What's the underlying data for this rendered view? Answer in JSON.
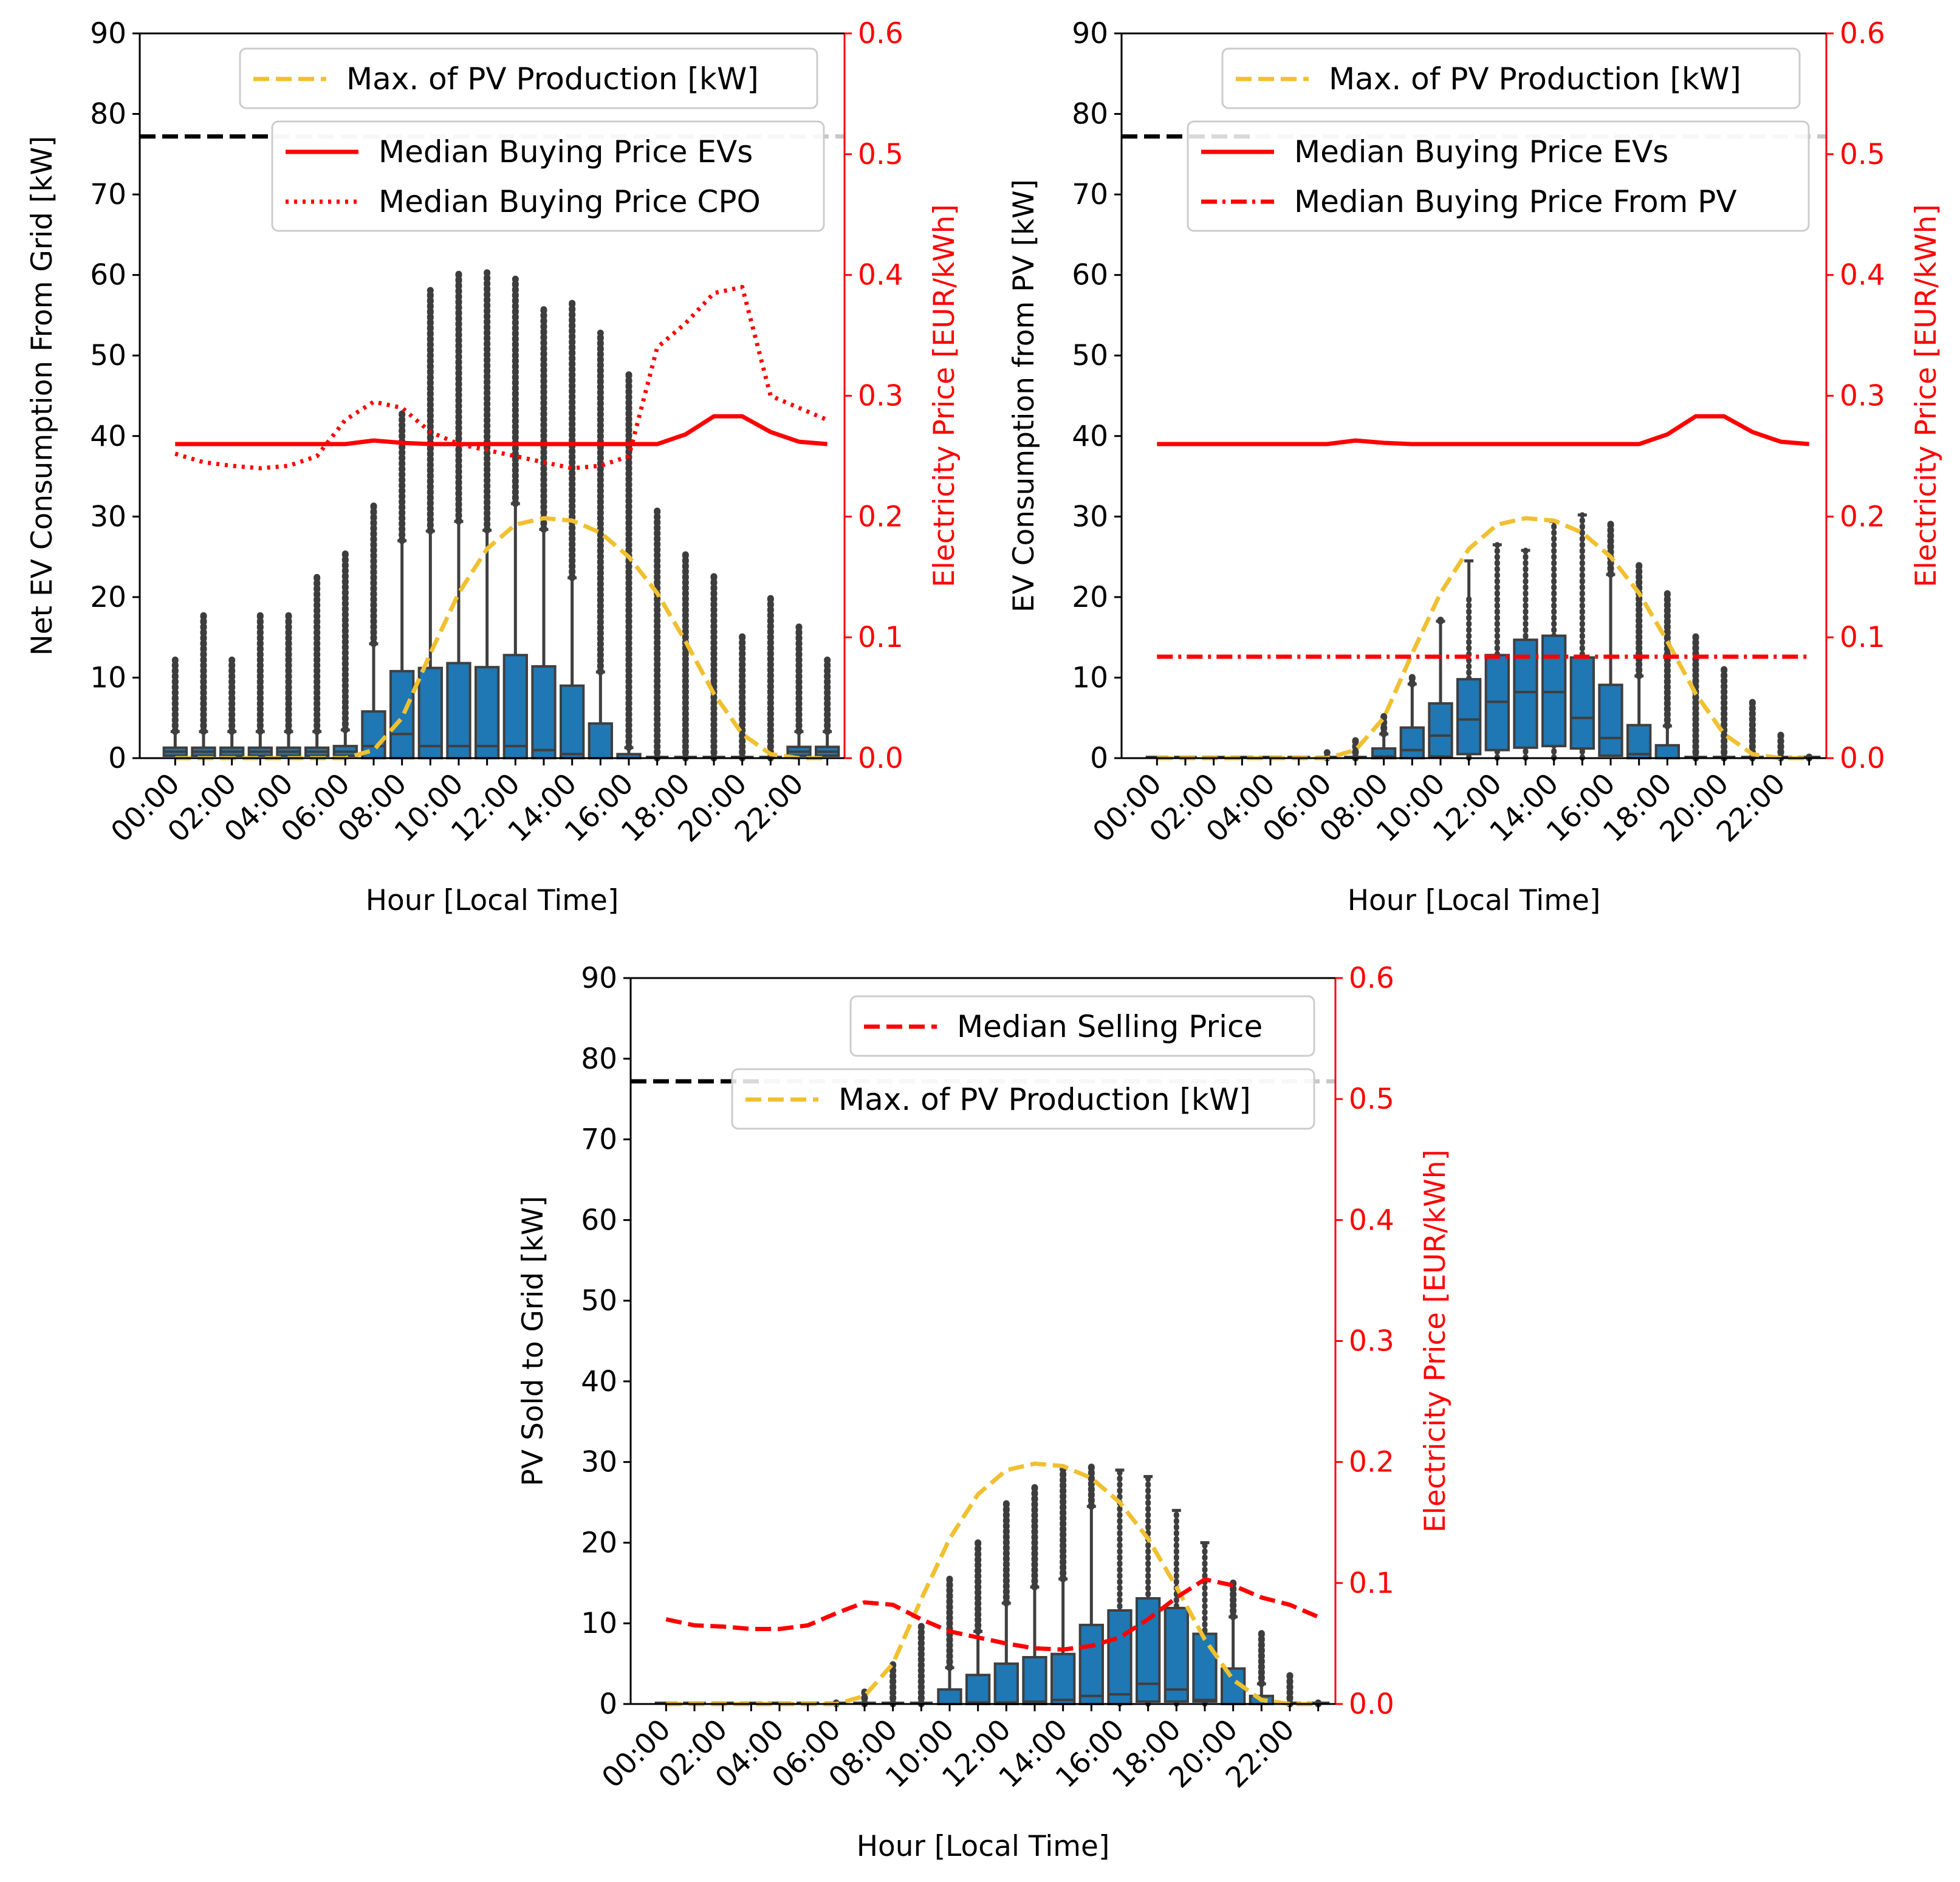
{
  "chart_data": [
    {
      "type": "box",
      "id": "grid",
      "xlabel": "Hour [Local Time]",
      "ylabel": "Net EV Consumption From Grid [kW]",
      "ylabel_right": "Electricity Price [EUR/kWh]",
      "ylim": [
        0,
        90
      ],
      "ylim_right": [
        0,
        0.6
      ],
      "yticks": [
        "0",
        "10",
        "20",
        "30",
        "40",
        "50",
        "60",
        "70",
        "80",
        "90"
      ],
      "yticks_right": [
        "0.0",
        "0.1",
        "0.2",
        "0.3",
        "0.4",
        "0.5",
        "0.6"
      ],
      "xticks": [
        "00:00",
        "02:00",
        "04:00",
        "06:00",
        "08:00",
        "10:00",
        "12:00",
        "14:00",
        "16:00",
        "18:00",
        "20:00",
        "22:00"
      ],
      "boxes": {
        "q1": [
          0.3,
          0.3,
          0.3,
          0.3,
          0.3,
          0.3,
          0.3,
          0,
          0,
          0,
          0,
          0,
          0,
          0,
          0,
          0,
          0,
          0,
          0,
          0,
          0,
          0,
          0.3,
          0.3
        ],
        "median": [
          0.8,
          0.8,
          0.8,
          0.8,
          0.8,
          0.8,
          0.8,
          1.5,
          3,
          1.5,
          1.5,
          1.5,
          1.5,
          1,
          0.5,
          0,
          0,
          0,
          0,
          0,
          0,
          0,
          0.8,
          0.8
        ],
        "q3": [
          1.3,
          1.3,
          1.3,
          1.3,
          1.3,
          1.3,
          1.5,
          5.8,
          10.8,
          11.2,
          11.8,
          11.3,
          12.8,
          11.4,
          9,
          4.3,
          0.5,
          0,
          0,
          0,
          0,
          0,
          1.4,
          1.4
        ],
        "whisker_high": [
          3.3,
          3.3,
          3.3,
          3.3,
          3.3,
          3.3,
          3.5,
          14.2,
          27,
          28.2,
          29.4,
          28.3,
          31.6,
          28.4,
          22.4,
          10.7,
          1.3,
          0,
          0,
          0,
          0,
          0,
          3.3,
          3.3
        ],
        "flier_max": [
          12.2,
          18.2,
          12.2,
          18.2,
          18.2,
          22.8,
          25.8,
          31.6,
          42.8,
          58.1,
          60.5,
          60.3,
          59.5,
          55.8,
          56.5,
          52.8,
          47.8,
          30.8,
          25.6,
          22.8,
          15.4,
          20.3,
          16.3,
          12.2
        ]
      },
      "lines": [
        {
          "name": "Median Buying Price EVs",
          "axis": "right",
          "style": "solid",
          "color": "#ff0000",
          "values": [
            0.26,
            0.26,
            0.26,
            0.26,
            0.26,
            0.26,
            0.26,
            0.263,
            0.261,
            0.26,
            0.26,
            0.26,
            0.26,
            0.26,
            0.26,
            0.26,
            0.26,
            0.26,
            0.268,
            0.283,
            0.283,
            0.27,
            0.262,
            0.26
          ]
        },
        {
          "name": "Median Buying Price CPO",
          "axis": "right",
          "style": "dotted",
          "color": "#ff0000",
          "values": [
            0.252,
            0.245,
            0.242,
            0.24,
            0.242,
            0.25,
            0.28,
            0.295,
            0.29,
            0.27,
            0.26,
            0.255,
            0.25,
            0.245,
            0.24,
            0.242,
            0.25,
            0.34,
            0.36,
            0.385,
            0.39,
            0.3,
            0.29,
            0.28
          ]
        }
      ],
      "pv_max": {
        "name": "Max. of PV Production [kW]",
        "style": "dashed",
        "color": "#f0c030",
        "values": [
          0,
          0,
          0,
          0,
          0,
          0,
          0,
          1,
          5,
          13,
          20.5,
          26,
          29,
          29.8,
          29.5,
          28,
          25,
          20.5,
          14.5,
          8,
          3,
          0.5,
          0,
          0
        ]
      },
      "reference_line": {
        "value": 77.2,
        "style": "dashed",
        "color": "#000000"
      },
      "legends": [
        {
          "entries": [
            {
              "label": "Max. of PV Production [kW]",
              "style": "dashed",
              "color": "#f0c030"
            }
          ]
        },
        {
          "entries": [
            {
              "label": "Median Buying Price EVs",
              "style": "solid",
              "color": "#ff0000"
            },
            {
              "label": "Median Buying Price CPO",
              "style": "dotted",
              "color": "#ff0000"
            }
          ]
        }
      ]
    },
    {
      "type": "box",
      "id": "pv",
      "xlabel": "Hour [Local Time]",
      "ylabel": "EV Consumption from PV [kW]",
      "ylabel_right": "Electricity Price [EUR/kWh]",
      "ylim": [
        0,
        90
      ],
      "ylim_right": [
        0,
        0.6
      ],
      "yticks": [
        "0",
        "10",
        "20",
        "30",
        "40",
        "50",
        "60",
        "70",
        "80",
        "90"
      ],
      "yticks_right": [
        "0.0",
        "0.1",
        "0.2",
        "0.3",
        "0.4",
        "0.5",
        "0.6"
      ],
      "xticks": [
        "00:00",
        "02:00",
        "04:00",
        "06:00",
        "08:00",
        "10:00",
        "12:00",
        "14:00",
        "16:00",
        "18:00",
        "20:00",
        "22:00"
      ],
      "boxes": {
        "q1": [
          0,
          0,
          0,
          0,
          0,
          0,
          0,
          0,
          0,
          0,
          0.2,
          0.5,
          1,
          1.3,
          1.5,
          1.2,
          0.3,
          0,
          0,
          0,
          0,
          0,
          0,
          0
        ],
        "median": [
          0,
          0,
          0,
          0,
          0,
          0,
          0,
          0,
          0.2,
          1,
          2.8,
          4.8,
          7,
          8.2,
          8.2,
          5,
          2.5,
          0.5,
          0,
          0,
          0,
          0,
          0,
          0
        ],
        "q3": [
          0,
          0,
          0,
          0,
          0,
          0,
          0,
          0,
          1.2,
          3.8,
          6.8,
          9.8,
          12.8,
          14.7,
          15.2,
          12.5,
          9.1,
          4.1,
          1.6,
          0,
          0,
          0,
          0,
          0
        ],
        "whisker_high": [
          0,
          0,
          0,
          0,
          0,
          0,
          0,
          0,
          3,
          9.2,
          17,
          24.5,
          26.5,
          25.8,
          29.4,
          30.2,
          22.8,
          10.2,
          4,
          0,
          0,
          0,
          0,
          0
        ],
        "flier_max": [
          0,
          0,
          0,
          0,
          0,
          0,
          0.7,
          2.2,
          5.4,
          10.2,
          17.6,
          20.2,
          26.5,
          25.8,
          29.4,
          30.2,
          29.2,
          24,
          20.8,
          15.6,
          11.4,
          7,
          3,
          0.5
        ]
      },
      "lines": [
        {
          "name": "Median Buying Price EVs",
          "axis": "right",
          "style": "solid",
          "color": "#ff0000",
          "values": [
            0.26,
            0.26,
            0.26,
            0.26,
            0.26,
            0.26,
            0.26,
            0.263,
            0.261,
            0.26,
            0.26,
            0.26,
            0.26,
            0.26,
            0.26,
            0.26,
            0.26,
            0.26,
            0.268,
            0.283,
            0.283,
            0.27,
            0.262,
            0.26
          ]
        },
        {
          "name": "Median Buying Price From PV",
          "axis": "right",
          "style": "dashdot",
          "color": "#ff0000",
          "values": [
            0.084,
            0.084,
            0.084,
            0.084,
            0.084,
            0.084,
            0.084,
            0.084,
            0.084,
            0.084,
            0.084,
            0.084,
            0.084,
            0.084,
            0.084,
            0.084,
            0.084,
            0.084,
            0.084,
            0.084,
            0.084,
            0.084,
            0.084,
            0.084
          ],
          "start_index": 0
        }
      ],
      "pv_max": {
        "name": "Max. of PV Production [kW]",
        "style": "dashed",
        "color": "#f0c030",
        "values": [
          0,
          0,
          0,
          0,
          0,
          0,
          0,
          1,
          5,
          13,
          20.5,
          26,
          29,
          29.8,
          29.5,
          28,
          25,
          20.5,
          14.5,
          8,
          3,
          0.5,
          0,
          0
        ]
      },
      "reference_line": {
        "value": 77.2,
        "style": "dashed",
        "color": "#000000"
      },
      "legends": [
        {
          "entries": [
            {
              "label": "Max. of PV Production [kW]",
              "style": "dashed",
              "color": "#f0c030"
            }
          ]
        },
        {
          "entries": [
            {
              "label": "Median Buying Price EVs",
              "style": "solid",
              "color": "#ff0000"
            },
            {
              "label": "Median Buying Price From PV",
              "style": "dashdot",
              "color": "#ff0000"
            }
          ]
        }
      ]
    },
    {
      "type": "box",
      "id": "sold",
      "xlabel": "Hour [Local Time]",
      "ylabel": "PV Sold to Grid [kW]",
      "ylabel_right": "Electricity Price [EUR/kWh]",
      "ylim": [
        0,
        90
      ],
      "ylim_right": [
        0,
        0.6
      ],
      "yticks": [
        "0",
        "10",
        "20",
        "30",
        "40",
        "50",
        "60",
        "70",
        "80",
        "90"
      ],
      "yticks_right": [
        "0.0",
        "0.1",
        "0.2",
        "0.3",
        "0.4",
        "0.5",
        "0.6"
      ],
      "xticks": [
        "00:00",
        "02:00",
        "04:00",
        "06:00",
        "08:00",
        "10:00",
        "12:00",
        "14:00",
        "16:00",
        "18:00",
        "20:00",
        "22:00"
      ],
      "boxes": {
        "q1": [
          0,
          0,
          0,
          0,
          0,
          0,
          0,
          0,
          0,
          0,
          0,
          0,
          0,
          0,
          0,
          0,
          0,
          0.3,
          0.3,
          0.3,
          0,
          0,
          0,
          0
        ],
        "median": [
          0,
          0,
          0,
          0,
          0,
          0,
          0,
          0,
          0,
          0,
          0,
          0.2,
          0.2,
          0.3,
          0.5,
          1,
          1.2,
          2.5,
          1.8,
          0.5,
          0,
          0,
          0,
          0
        ],
        "q3": [
          0,
          0,
          0,
          0,
          0,
          0,
          0,
          0,
          0,
          0,
          1.8,
          3.6,
          5,
          5.8,
          6.2,
          9.8,
          11.6,
          13.1,
          11.9,
          8.7,
          4.4,
          1,
          0,
          0
        ],
        "whisker_high": [
          0,
          0,
          0,
          0,
          0,
          0,
          0,
          0,
          0,
          0,
          4.5,
          9,
          12.5,
          14.5,
          15.5,
          24.5,
          29,
          28.2,
          24,
          20,
          10.8,
          2.5,
          0,
          0
        ],
        "flier_max": [
          0,
          0,
          0,
          0,
          0,
          0,
          0.5,
          1.8,
          5.2,
          9.8,
          16,
          20,
          25.2,
          27.2,
          29.4,
          29.4,
          29,
          28.2,
          24,
          20,
          15.4,
          8.8,
          3.6,
          0.5
        ]
      },
      "lines": [
        {
          "name": "Median Selling Price",
          "axis": "right",
          "style": "dashed",
          "color": "#ff0000",
          "values": [
            0.07,
            0.065,
            0.064,
            0.062,
            0.062,
            0.065,
            0.075,
            0.084,
            0.082,
            0.07,
            0.06,
            0.055,
            0.05,
            0.046,
            0.045,
            0.048,
            0.055,
            0.07,
            0.088,
            0.103,
            0.098,
            0.088,
            0.082,
            0.072
          ]
        }
      ],
      "pv_max": {
        "name": "Max. of PV Production [kW]",
        "style": "dashed",
        "color": "#f0c030",
        "values": [
          0,
          0,
          0,
          0,
          0,
          0,
          0,
          1,
          5,
          13,
          20.5,
          26,
          29,
          29.8,
          29.5,
          28,
          25,
          20.5,
          14.5,
          8,
          3,
          0.5,
          0,
          0
        ]
      },
      "reference_line": {
        "value": 77.2,
        "style": "dashed",
        "color": "#000000"
      },
      "legends": [
        {
          "entries": [
            {
              "label": "Median Selling Price",
              "style": "dashed",
              "color": "#ff0000"
            }
          ]
        },
        {
          "entries": [
            {
              "label": "Max. of PV Production [kW]",
              "style": "dashed",
              "color": "#f0c030"
            }
          ]
        }
      ]
    }
  ],
  "colors": {
    "box_fill": "#1f77b4",
    "box_edge": "#3f3f3f",
    "flier": "#3d3d3d",
    "right_axis": "#ff0000"
  }
}
